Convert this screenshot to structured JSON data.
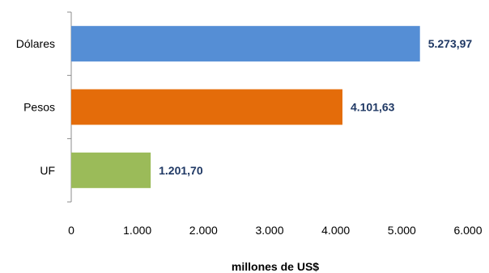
{
  "chart_data": {
    "type": "bar",
    "orientation": "horizontal",
    "categories": [
      "Dólares",
      "Pesos",
      "UF"
    ],
    "values": [
      5273.97,
      4101.63,
      1201.7
    ],
    "value_labels": [
      "5.273,97",
      "4.101,63",
      "1.201,70"
    ],
    "colors": [
      "#558ed5",
      "#e46c0a",
      "#9bbb59"
    ],
    "title": "",
    "xlabel": "millones de US$",
    "ylabel": "",
    "xlim": [
      0,
      6000
    ],
    "xticks": [
      0,
      1000,
      2000,
      3000,
      4000,
      5000,
      6000
    ],
    "xtick_labels": [
      "0",
      "1.000",
      "2.000",
      "3.000",
      "4.000",
      "5.000",
      "6.000"
    ],
    "grid": false,
    "legend": "none"
  }
}
